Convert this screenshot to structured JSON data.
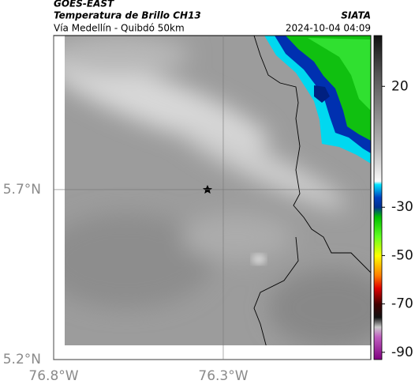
{
  "header": {
    "source": "GOES-EAST",
    "title": "Temperatura de Brillo CH13",
    "subtitle": "Vía Medellín - Quibdó 50km",
    "agency": "SIATA",
    "timestamp": "2024-10-04 04:09"
  },
  "map": {
    "xlim": [
      -76.8,
      -75.865
    ],
    "ylim": [
      5.2,
      6.153
    ],
    "xticks": [
      {
        "value": -76.8,
        "label": "76.8°W"
      },
      {
        "value": -76.3,
        "label": "76.3°W"
      }
    ],
    "yticks": [
      {
        "value": 5.2,
        "label": "5.2°N"
      },
      {
        "value": 5.7,
        "label": "5.7°N"
      }
    ],
    "grid": true
  },
  "colorbar": {
    "lim": [
      41,
      -93
    ],
    "ticks": [
      20,
      -30,
      -50,
      -70,
      -90
    ]
  }
}
